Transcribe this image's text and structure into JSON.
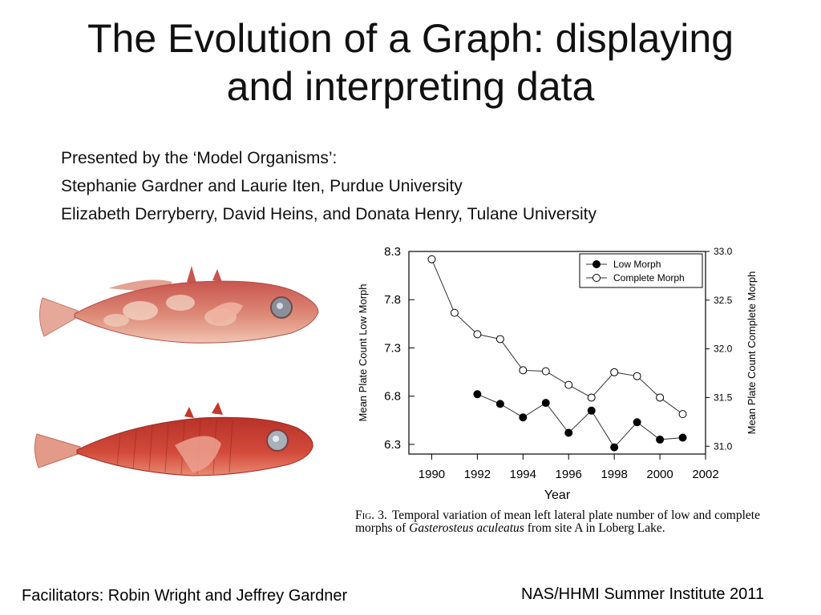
{
  "slide": {
    "title_line1": "The Evolution of a Graph: displaying",
    "title_line2": "and interpreting data",
    "presenters": [
      "Presented by the ‘Model Organisms’:",
      "Stephanie Gardner and Laurie Iten, Purdue University",
      "Elizabeth Derryberry, David Heins, and Donata Henry, Tulane University"
    ],
    "footer_left": "Facilitators:  Robin Wright and Jeffrey Gardner",
    "footer_right": "NAS/HHMI Summer Institute 2011"
  },
  "caption": {
    "fig_label": "Fig. 3.",
    "text_before": "Temporal variation of mean left lateral plate number of low and complete morphs of ",
    "species": "Gasterosteus aculeatus",
    "text_after": " from site A in Loberg Lake."
  },
  "images": {
    "fish_top": "threespine-stickleback-low-morph-photo",
    "fish_bottom": "threespine-stickleback-complete-morph-photo"
  },
  "chart_data": {
    "type": "line",
    "xlabel": "Year",
    "ylabel_left": "Mean Plate Count Low Morph",
    "ylabel_right": "Mean Plate Count Complete Morph",
    "xlim": [
      1989,
      2002
    ],
    "x_ticks": [
      1990,
      1992,
      1994,
      1996,
      1998,
      2000,
      2002
    ],
    "ylim_left": [
      6.2,
      8.3
    ],
    "y_ticks_left": [
      "6.3",
      "6.8",
      "7.3",
      "7.8",
      "8.3"
    ],
    "ylim_right": [
      30.92,
      33.0
    ],
    "y_ticks_right": [
      "31.0",
      "31.5",
      "32.0",
      "32.5",
      "33.0"
    ],
    "legend_position": "top-right",
    "grid": false,
    "series": [
      {
        "name": "Low Morph",
        "axis": "left",
        "marker": "filled-circle",
        "x": [
          1992,
          1993,
          1994,
          1995,
          1996,
          1997,
          1998,
          1999,
          2000,
          2001
        ],
        "y": [
          6.82,
          6.72,
          6.58,
          6.73,
          6.42,
          6.65,
          6.27,
          6.53,
          6.35,
          6.37
        ]
      },
      {
        "name": "Complete Morph",
        "axis": "right",
        "marker": "open-circle",
        "x": [
          1990,
          1991,
          1992,
          1993,
          1994,
          1995,
          1996,
          1997,
          1998,
          1999,
          2000,
          2001
        ],
        "y": [
          32.92,
          32.37,
          32.15,
          32.1,
          31.78,
          31.77,
          31.63,
          31.5,
          31.76,
          31.72,
          31.5,
          31.33
        ]
      }
    ]
  }
}
